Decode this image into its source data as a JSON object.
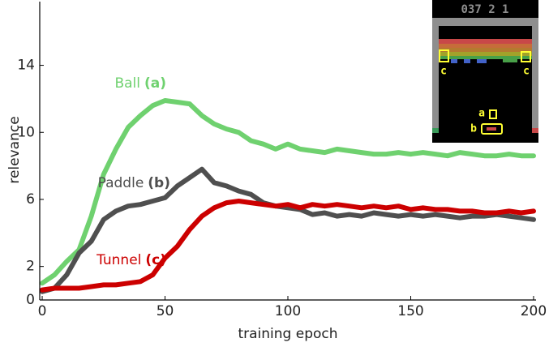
{
  "chart_data": {
    "type": "line",
    "x_label": "training epoch",
    "y_label": "relevance",
    "x": [
      0,
      5,
      10,
      15,
      20,
      25,
      30,
      35,
      40,
      45,
      50,
      55,
      60,
      65,
      70,
      75,
      80,
      85,
      90,
      95,
      100,
      105,
      110,
      115,
      120,
      125,
      130,
      135,
      140,
      145,
      150,
      155,
      160,
      165,
      170,
      175,
      180,
      185,
      190,
      195,
      200
    ],
    "series": [
      {
        "name": "Ball",
        "tag": "(a)",
        "color": "#6fd16f",
        "values": [
          1.0,
          1.5,
          2.3,
          3.0,
          5.0,
          7.5,
          9.0,
          10.3,
          11.0,
          11.6,
          11.9,
          11.8,
          11.7,
          11.0,
          10.5,
          10.2,
          10.0,
          9.5,
          9.3,
          9.0,
          9.3,
          9.0,
          8.9,
          8.8,
          9.0,
          8.9,
          8.8,
          8.7,
          8.7,
          8.8,
          8.7,
          8.8,
          8.7,
          8.6,
          8.8,
          8.7,
          8.6,
          8.6,
          8.7,
          8.6,
          8.6
        ]
      },
      {
        "name": "Paddle",
        "tag": "(b)",
        "color": "#4f4f4f",
        "values": [
          0.5,
          0.7,
          1.5,
          2.8,
          3.5,
          4.8,
          5.3,
          5.6,
          5.7,
          5.9,
          6.1,
          6.8,
          7.3,
          7.8,
          7.0,
          6.8,
          6.5,
          6.3,
          5.8,
          5.6,
          5.5,
          5.4,
          5.1,
          5.2,
          5.0,
          5.1,
          5.0,
          5.2,
          5.1,
          5.0,
          5.1,
          5.0,
          5.1,
          5.0,
          4.9,
          5.0,
          5.0,
          5.1,
          5.0,
          4.9,
          4.8
        ]
      },
      {
        "name": "Tunnel",
        "tag": "(c)",
        "color": "#cc0000",
        "values": [
          0.6,
          0.7,
          0.7,
          0.7,
          0.8,
          0.9,
          0.9,
          1.0,
          1.1,
          1.5,
          2.5,
          3.2,
          4.2,
          5.0,
          5.5,
          5.8,
          5.9,
          5.8,
          5.7,
          5.6,
          5.7,
          5.5,
          5.7,
          5.6,
          5.7,
          5.6,
          5.5,
          5.6,
          5.5,
          5.6,
          5.4,
          5.5,
          5.4,
          5.4,
          5.3,
          5.3,
          5.2,
          5.2,
          5.3,
          5.2,
          5.3
        ]
      }
    ],
    "xlim": [
      -1,
      201
    ],
    "xticks": [
      0,
      50,
      100,
      150,
      200
    ],
    "ylim": [
      0,
      17.8
    ],
    "yticks": [
      0,
      2,
      6,
      10,
      14
    ],
    "inset": {
      "score": "037  2  1",
      "labels": [
        "a",
        "b",
        "c",
        "c"
      ]
    }
  }
}
